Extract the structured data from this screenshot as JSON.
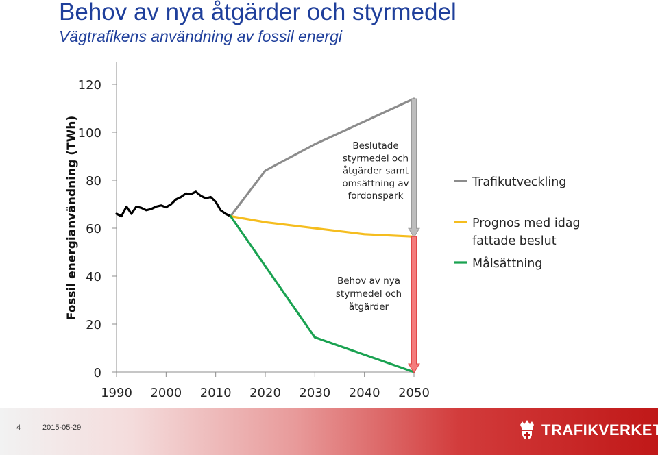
{
  "header": {
    "title": "Behov av nya åtgärder och styrmedel",
    "subtitle": "Vägtrafikens användning av fossil energi"
  },
  "footer": {
    "page_number": "4",
    "date": "2015-05-29",
    "logo_text": "TRAFIKVERKET"
  },
  "colors": {
    "historic": "#000000",
    "trafikutveckling": "#8c8c8c",
    "prognos": "#f5bd1f",
    "malsattning": "#1aa251",
    "arrow_gray": "#bdbdbd",
    "arrow_red": "#f47c7c",
    "title": "#1f3f9b"
  },
  "chart_data": {
    "type": "line",
    "ylabel": "Fossil energianvändning (TWh)",
    "xlabel": "",
    "xlim": [
      1990,
      2050
    ],
    "ylim": [
      0,
      120
    ],
    "xticks": [
      1990,
      2000,
      2010,
      2020,
      2030,
      2040,
      2050
    ],
    "yticks": [
      0,
      20,
      40,
      60,
      80,
      100,
      120
    ],
    "grid": false,
    "legend_position": "right",
    "series": [
      {
        "key": "historic",
        "x": [
          1990,
          1991,
          1992,
          1993,
          1994,
          1995,
          1996,
          1997,
          1998,
          1999,
          2000,
          2001,
          2002,
          2003,
          2004,
          2005,
          2006,
          2007,
          2008,
          2009,
          2010,
          2011,
          2012,
          2013
        ],
        "y": [
          66,
          65,
          69,
          66,
          69,
          68.5,
          67.5,
          68,
          69,
          69.5,
          68.7,
          70,
          72,
          73,
          74.5,
          74.2,
          75.2,
          73.5,
          72.5,
          73,
          71,
          67.5,
          66,
          65
        ]
      },
      {
        "key": "trafikutveckling",
        "name": "Trafikutveckling",
        "x": [
          2013,
          2020,
          2030,
          2050
        ],
        "y": [
          65,
          84,
          95,
          114
        ]
      },
      {
        "key": "prognos",
        "name": "Prognos med idag fattade beslut",
        "x": [
          2013,
          2020,
          2040,
          2050
        ],
        "y": [
          65,
          62.5,
          57.5,
          56.5
        ]
      },
      {
        "key": "malsattning",
        "name": "Målsättning",
        "x": [
          2013,
          2030,
          2050
        ],
        "y": [
          65,
          14.5,
          0
        ]
      }
    ],
    "annotations": [
      {
        "key": "beslutade",
        "lines": [
          "Beslutade",
          "styrmedel och",
          "åtgärder samt",
          "omsättning av",
          "fordonspark"
        ]
      },
      {
        "key": "behov",
        "lines": [
          "Behov av nya",
          "styrmedel och",
          "åtgärder"
        ]
      }
    ],
    "arrows": [
      {
        "key": "gray",
        "x": 2050,
        "from": 114,
        "to": 56.5
      },
      {
        "key": "red",
        "x": 2050,
        "from": 56.5,
        "to": 0
      }
    ]
  }
}
